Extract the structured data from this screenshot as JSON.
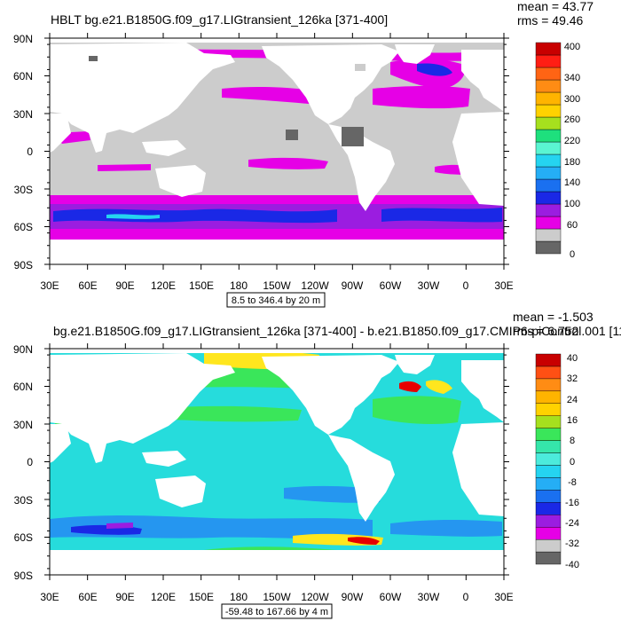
{
  "panels": [
    {
      "title": "HBLT bg.e21.B1850G.f09_g17.LIGtransient_126ka [371-400]",
      "mean": "mean = 43.77",
      "rms": "rms = 49.46",
      "range": "8.5 to 346.4 by 20 m",
      "colorbar_labels": [
        "400",
        "340",
        "300",
        "260",
        "220",
        "180",
        "140",
        "100",
        "60",
        "0"
      ]
    },
    {
      "title": "bg.e21.B1850G.f09_g17.LIGtransient_126ka [371-400] - b.e21.B1850.f09_g17.CMIP6-piControl.001 [11",
      "mean": "mean = -1.503",
      "rms": "rms = 6.752",
      "range": "-59.48 to 167.66 by 4 m",
      "colorbar_labels": [
        "40",
        "32",
        "24",
        "16",
        "8",
        "0",
        "-8",
        "-16",
        "-24",
        "-32",
        "-40"
      ]
    }
  ],
  "lat_labels": [
    "90N",
    "60N",
    "30N",
    "0",
    "30S",
    "60S",
    "90S"
  ],
  "lon_labels": [
    "30E",
    "60E",
    "90E",
    "120E",
    "150E",
    "180",
    "150W",
    "120W",
    "90W",
    "60W",
    "30W",
    "0",
    "30E"
  ],
  "colors": {
    "top": {
      "land": "#ffffff",
      "base": "#cccccc",
      "magenta": "#e600e6",
      "purple": "#9b1de0",
      "blue": "#1a28e6",
      "cyan": "#25d4f0",
      "scale": [
        "#666666",
        "#cccccc",
        "#e600e6",
        "#9b1de0",
        "#1a28e6",
        "#1a70f0",
        "#25aef5",
        "#25d4f0",
        "#5af5d2",
        "#1ee07d",
        "#a6e01e",
        "#ffd200",
        "#ffb400",
        "#ff8c14",
        "#ff6414",
        "#ff1e14",
        "#c80000"
      ]
    },
    "bottom": {
      "land": "#ffffff",
      "base": "#26dcdc",
      "blue": "#2596f0",
      "green": "#3ae65a",
      "yellow": "#ffe61e",
      "red": "#e60000",
      "scale": [
        "#666666",
        "#cccccc",
        "#e600e6",
        "#9b1de0",
        "#1a28e6",
        "#1a70f0",
        "#25aef5",
        "#25d4f0",
        "#4cebdc",
        "#35e6aa",
        "#3ae65a",
        "#a6e01e",
        "#ffd200",
        "#ffb400",
        "#ff8c14",
        "#ff5014",
        "#c80000"
      ]
    }
  }
}
